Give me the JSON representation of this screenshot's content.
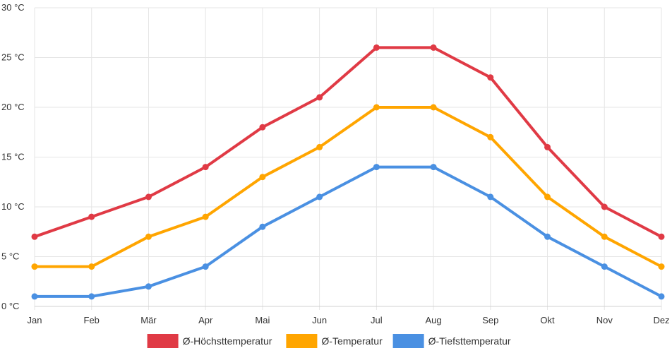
{
  "chart_data": {
    "type": "line",
    "categories": [
      "Jan",
      "Feb",
      "Mär",
      "Apr",
      "Mai",
      "Jun",
      "Jul",
      "Aug",
      "Sep",
      "Okt",
      "Nov",
      "Dez"
    ],
    "ylim": [
      0,
      30
    ],
    "yticks": [
      0,
      5,
      10,
      15,
      20,
      25,
      30
    ],
    "y_unit": " °C",
    "grid": true,
    "legend_position": "bottom-center",
    "series": [
      {
        "name": "Ø-Höchsttemperatur",
        "color": "#e03a45",
        "values": [
          7,
          9,
          11,
          14,
          18,
          21,
          26,
          26,
          23,
          16,
          10,
          7
        ]
      },
      {
        "name": "Ø-Temperatur",
        "color": "#ffa500",
        "values": [
          4,
          4,
          7,
          9,
          13,
          16,
          20,
          20,
          17,
          11,
          7,
          4
        ]
      },
      {
        "name": "Ø-Tiefsttemperatur",
        "color": "#4a90e2",
        "values": [
          1,
          1,
          2,
          4,
          8,
          11,
          14,
          14,
          11,
          7,
          4,
          1
        ]
      }
    ]
  }
}
